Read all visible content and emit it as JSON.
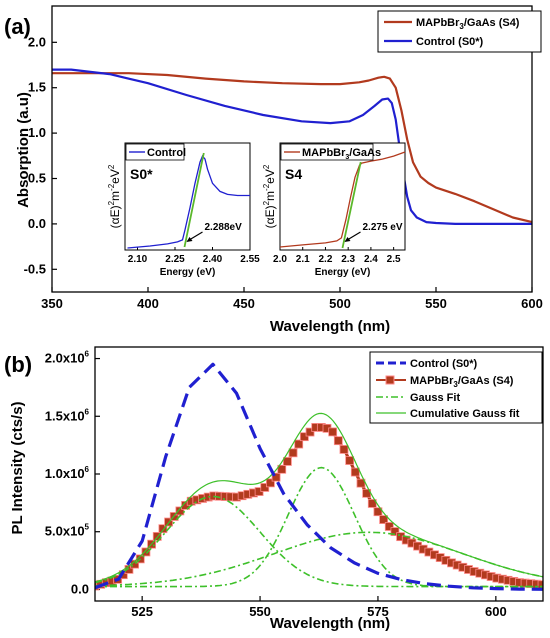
{
  "figure": {
    "panel_a_label": "(a)",
    "panel_b_label": "(b)"
  },
  "colors": {
    "control": "#2020d0",
    "mapbbr": "#b23a1e",
    "gauss_fit": "#3ec02a",
    "cumulative_fit": "#3ec02a",
    "inset_green": "#5ab82a"
  },
  "chart_data": [
    {
      "panel": "a",
      "type": "line",
      "xlabel": "Wavelength (nm)",
      "ylabel": "Absorption (a.u)",
      "xlim": [
        350,
        600
      ],
      "ylim": [
        -0.75,
        2.4
      ],
      "xticks": [
        "350",
        "400",
        "450",
        "500",
        "550",
        "600"
      ],
      "yticks": [
        "-0.5",
        "0.0",
        "0.5",
        "1.0",
        "1.5",
        "2.0"
      ],
      "legend_position": "top-right",
      "series": [
        {
          "name": "MAPbBr3/GaAs (S4)",
          "name_main": "MAPbBr",
          "name_sub": "3",
          "name_rest": "/GaAs (S4)",
          "color_key": "mapbbr",
          "x": [
            350,
            370,
            390,
            410,
            430,
            450,
            470,
            490,
            500,
            510,
            515,
            520,
            523,
            526,
            529,
            532,
            535,
            538,
            542,
            546,
            550,
            560,
            570,
            580,
            590,
            600
          ],
          "y": [
            1.66,
            1.66,
            1.66,
            1.64,
            1.6,
            1.57,
            1.55,
            1.54,
            1.54,
            1.56,
            1.58,
            1.61,
            1.62,
            1.6,
            1.5,
            1.25,
            0.93,
            0.68,
            0.52,
            0.45,
            0.4,
            0.33,
            0.25,
            0.16,
            0.07,
            0.02
          ]
        },
        {
          "name": "Control (S0*)",
          "color_key": "control",
          "x": [
            350,
            360,
            380,
            400,
            420,
            440,
            460,
            480,
            495,
            505,
            512,
            518,
            522,
            525,
            527,
            529,
            531,
            533,
            535,
            537,
            540,
            545,
            550,
            560,
            580,
            600
          ],
          "y": [
            1.7,
            1.7,
            1.65,
            1.55,
            1.42,
            1.3,
            1.2,
            1.13,
            1.11,
            1.13,
            1.2,
            1.3,
            1.37,
            1.38,
            1.33,
            1.15,
            0.85,
            0.55,
            0.3,
            0.15,
            0.07,
            0.02,
            0.01,
            0.0,
            0.0,
            0.0
          ]
        }
      ],
      "insets": [
        {
          "tag": "S0*",
          "legend_label": "Control",
          "legend_color_key": "control",
          "xlabel": "Energy (eV)",
          "ylabel_parts": [
            "(αE)",
            "2",
            "m",
            "-2",
            "eV",
            "2"
          ],
          "xlim": [
            2.05,
            2.55
          ],
          "ylim": [
            0,
            1
          ],
          "xticks": [
            2.1,
            2.25,
            2.4,
            2.55
          ],
          "xtick_labels": [
            "2.10",
            "2.25",
            "2.40",
            "2.55"
          ],
          "bandgap_label": "2.288eV",
          "bandgap_value": 2.288,
          "data_x": [
            2.06,
            2.15,
            2.22,
            2.26,
            2.28,
            2.29,
            2.31,
            2.33,
            2.35,
            2.36,
            2.37,
            2.38,
            2.4,
            2.43,
            2.46,
            2.5,
            2.55
          ],
          "data_y": [
            0.02,
            0.04,
            0.06,
            0.08,
            0.1,
            0.2,
            0.42,
            0.66,
            0.87,
            0.93,
            0.9,
            0.8,
            0.66,
            0.58,
            0.55,
            0.54,
            0.54
          ],
          "fit_x": [
            2.288,
            2.365
          ],
          "fit_y": [
            0.03,
            0.96
          ]
        },
        {
          "tag": "S4",
          "legend_label": "MAPbBr3/GaAs",
          "legend_main": "MAPbBr",
          "legend_sub": "3",
          "legend_rest": "/GaAs",
          "legend_color_key": "mapbbr",
          "xlabel": "Energy (eV)",
          "ylabel_parts": [
            "(αE)",
            "2",
            "m",
            "-2",
            "eV",
            "2"
          ],
          "xlim": [
            2.0,
            2.55
          ],
          "ylim": [
            0,
            1
          ],
          "xticks": [
            2.0,
            2.1,
            2.2,
            2.3,
            2.4,
            2.5
          ],
          "xtick_labels": [
            "2.0",
            "2.1",
            "2.2",
            "2.3",
            "2.4",
            "2.5"
          ],
          "bandgap_label": "2.275 eV",
          "bandgap_value": 2.275,
          "data_x": [
            2.0,
            2.1,
            2.2,
            2.25,
            2.27,
            2.29,
            2.31,
            2.33,
            2.35,
            2.36,
            2.4,
            2.45,
            2.5,
            2.55
          ],
          "data_y": [
            0.03,
            0.05,
            0.07,
            0.09,
            0.12,
            0.3,
            0.52,
            0.72,
            0.84,
            0.86,
            0.88,
            0.9,
            0.93,
            0.97
          ],
          "fit_x": [
            2.275,
            2.355
          ],
          "fit_y": [
            0.02,
            0.87
          ]
        }
      ]
    },
    {
      "panel": "b",
      "type": "line",
      "xlabel": "Wavelength (nm)",
      "ylabel": "PL Intensity (cts/s)",
      "xlim": [
        515,
        610
      ],
      "ylim": [
        -100000,
        2100000
      ],
      "xticks": [
        "525",
        "550",
        "575",
        "600"
      ],
      "ytick_values": [
        0,
        500000,
        1000000,
        1500000,
        2000000
      ],
      "ytick_labels": [
        {
          "mant": "0.0",
          "exp": ""
        },
        {
          "mant": "5.0x10",
          "exp": "5"
        },
        {
          "mant": "1.0x10",
          "exp": "6"
        },
        {
          "mant": "1.5x10",
          "exp": "6"
        },
        {
          "mant": "2.0x10",
          "exp": "6"
        }
      ],
      "legend_position": "top-right",
      "series": [
        {
          "name": "Control (S0*)",
          "color_key": "control",
          "style": "dashed",
          "x": [
            515,
            520,
            525,
            530,
            535,
            540,
            545,
            550,
            555,
            560,
            565,
            570,
            575,
            580,
            585,
            590,
            595,
            600,
            605,
            610
          ],
          "y": [
            15000,
            90000,
            420000,
            1150000,
            1750000,
            1950000,
            1700000,
            1220000,
            830000,
            560000,
            360000,
            230000,
            140000,
            85000,
            50000,
            28000,
            14000,
            7000,
            3000,
            1000
          ]
        },
        {
          "name": "MAPbBr3/GaAs (S4)",
          "name_main": "MAPbBr",
          "name_sub": "3",
          "name_rest": "/GaAs (S4)",
          "color_key": "mapbbr",
          "style": "square-markers",
          "x": [
            515,
            520,
            525,
            530,
            535,
            540,
            545,
            550,
            553,
            556,
            559,
            562,
            565,
            568,
            571,
            574,
            577,
            580,
            585,
            590,
            595,
            600,
            605,
            610
          ],
          "y": [
            30000,
            90000,
            280000,
            560000,
            760000,
            810000,
            800000,
            850000,
            950000,
            1120000,
            1310000,
            1410000,
            1390000,
            1200000,
            950000,
            730000,
            560000,
            450000,
            340000,
            240000,
            160000,
            100000,
            60000,
            40000
          ]
        },
        {
          "name": "Gauss Fit",
          "color_key": "gauss_fit",
          "style": "dash-dot",
          "components": [
            {
              "center": 540,
              "amplitude": 780000,
              "sigma": 10
            },
            {
              "center": 563,
              "amplitude": 1030000,
              "sigma": 7
            },
            {
              "center": 573,
              "amplitude": 470000,
              "sigma": 20
            }
          ],
          "baseline": 25000
        },
        {
          "name": "Cumulative Gauss fit",
          "color_key": "cumulative_fit",
          "style": "solid-thin"
        }
      ]
    }
  ]
}
